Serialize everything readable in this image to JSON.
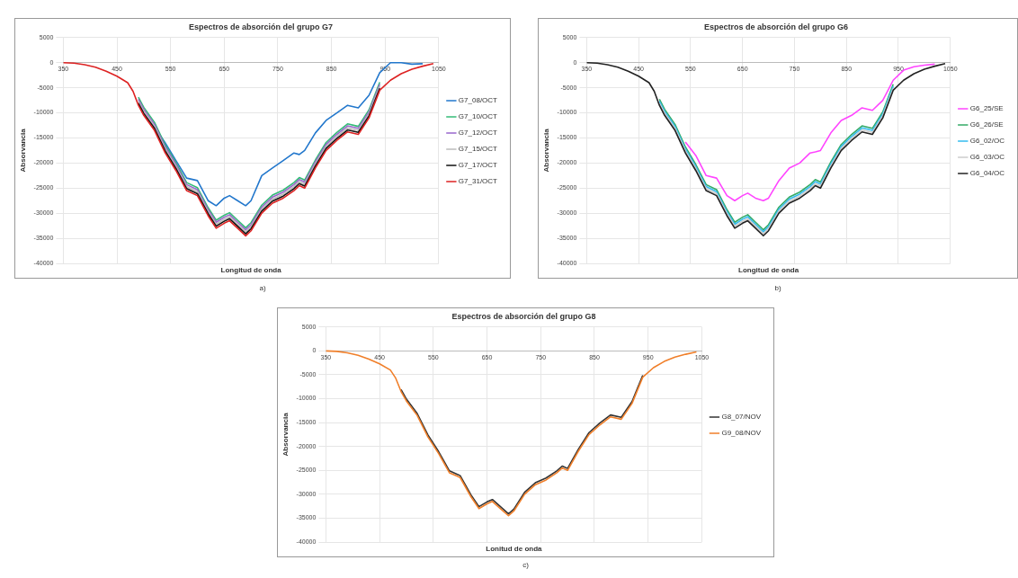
{
  "chart_data": [
    {
      "type": "line",
      "title": "Espectros de absorción del grupo G7",
      "xlabel": "Longitud de onda",
      "ylabel": "Absorvancia",
      "annotations": [
        "a)"
      ],
      "xlim": [
        350,
        1050
      ],
      "xticks": [
        350,
        450,
        550,
        650,
        750,
        850,
        950,
        1050
      ],
      "ylim": [
        -40000,
        5000
      ],
      "yticks": [
        -40000,
        -35000,
        -30000,
        -25000,
        -20000,
        -15000,
        -10000,
        -5000,
        0,
        5000
      ],
      "grid": true,
      "legend": "right",
      "marker": "none",
      "line_style": "solid",
      "x": [
        350,
        370,
        390,
        410,
        430,
        450,
        470,
        480,
        490,
        500,
        520,
        540,
        560,
        580,
        600,
        620,
        635,
        650,
        660,
        675,
        690,
        700,
        720,
        740,
        760,
        780,
        790,
        800,
        820,
        840,
        860,
        880,
        900,
        920,
        940,
        960,
        980,
        1000,
        1020,
        1040
      ],
      "series": [
        {
          "name": "G7_08/OCT",
          "color": "#2277cc",
          "values": [
            null,
            null,
            null,
            null,
            null,
            null,
            null,
            null,
            null,
            null,
            -12800,
            -16000,
            -19500,
            -23000,
            -23500,
            -27500,
            -28500,
            -27000,
            -26500,
            -27500,
            -28500,
            -27500,
            -22500,
            -21000,
            -19500,
            -18000,
            -18300,
            -17500,
            -14000,
            -11500,
            -10000,
            -8500,
            -9000,
            -6500,
            -2000,
            0,
            0,
            -300,
            -200,
            null
          ]
        },
        {
          "name": "G7_10/OCT",
          "color": "#33bb77",
          "values": [
            null,
            null,
            null,
            null,
            null,
            null,
            null,
            null,
            -6900,
            -8900,
            -11900,
            -16400,
            -19900,
            -23900,
            -24900,
            -28900,
            -31400,
            -30400,
            -29900,
            -31400,
            -32900,
            -31900,
            -28400,
            -26400,
            -25400,
            -23900,
            -22900,
            -23400,
            -19400,
            -15900,
            -13900,
            -12200,
            -12700,
            -9400,
            -3900,
            null,
            null,
            null,
            null,
            null
          ]
        },
        {
          "name": "G7_12/OCT",
          "color": "#9966cc",
          "values": [
            null,
            null,
            null,
            null,
            null,
            null,
            null,
            null,
            -7300,
            -9300,
            -12300,
            -16800,
            -20300,
            -24300,
            -25300,
            -29300,
            -31800,
            -30800,
            -30300,
            -31800,
            -33300,
            -32300,
            -28800,
            -26800,
            -25800,
            -24300,
            -23300,
            -23800,
            -19800,
            -16300,
            -14300,
            -12600,
            -13100,
            -9800,
            -4300,
            null,
            null,
            null,
            null,
            null
          ]
        },
        {
          "name": "G7_15/OCT",
          "color": "#bbbbbb",
          "values": [
            null,
            null,
            null,
            null,
            null,
            null,
            null,
            null,
            -7700,
            -9700,
            -12700,
            -17200,
            -20700,
            -24700,
            -25700,
            -29700,
            -32200,
            -31200,
            -30700,
            -32200,
            -33700,
            -32700,
            -29200,
            -27200,
            -26200,
            -24700,
            -23700,
            -24200,
            -20200,
            -16700,
            -14700,
            -13000,
            -13500,
            -10200,
            -4700,
            null,
            null,
            null,
            null,
            null
          ]
        },
        {
          "name": "G7_17/OCT",
          "color": "#111111",
          "values": [
            null,
            null,
            null,
            null,
            null,
            null,
            null,
            null,
            -8100,
            -10100,
            -13100,
            -17600,
            -21100,
            -25100,
            -26100,
            -30100,
            -32600,
            -31600,
            -31100,
            -32600,
            -34100,
            -33100,
            -29600,
            -27600,
            -26600,
            -25100,
            -24100,
            -24600,
            -20600,
            -17100,
            -15100,
            -13400,
            -13900,
            -10600,
            -5100,
            null,
            null,
            null,
            null,
            null
          ]
        },
        {
          "name": "G7_31/OCT",
          "color": "#dd2222",
          "values": [
            0,
            -100,
            -400,
            -900,
            -1700,
            -2700,
            -4000,
            -5700,
            -8500,
            -10500,
            -13500,
            -18000,
            -21500,
            -25500,
            -26500,
            -30500,
            -33000,
            -32000,
            -31500,
            -33000,
            -34500,
            -33500,
            -30000,
            -28000,
            -27000,
            -25500,
            -24500,
            -25000,
            -21000,
            -17500,
            -15500,
            -13800,
            -14300,
            -11000,
            -5500,
            -3500,
            -2200,
            -1300,
            -700,
            -200
          ]
        }
      ]
    },
    {
      "type": "line",
      "title": "Espectros de absorción del grupo G6",
      "xlabel": "Longitud de onda",
      "ylabel": "Absorvancia",
      "annotations": [
        "b)"
      ],
      "xlim": [
        350,
        1050
      ],
      "xticks": [
        350,
        450,
        550,
        650,
        750,
        850,
        950,
        1050
      ],
      "ylim": [
        -40000,
        5000
      ],
      "yticks": [
        -40000,
        -35000,
        -30000,
        -25000,
        -20000,
        -15000,
        -10000,
        -5000,
        0,
        5000
      ],
      "grid": true,
      "legend": "right",
      "marker": "none",
      "line_style": "solid",
      "x": [
        350,
        370,
        390,
        410,
        430,
        450,
        470,
        480,
        490,
        500,
        520,
        540,
        560,
        580,
        600,
        620,
        635,
        650,
        660,
        675,
        690,
        700,
        720,
        740,
        760,
        780,
        790,
        800,
        820,
        840,
        860,
        880,
        900,
        920,
        940,
        960,
        980,
        1000,
        1020,
        1040
      ],
      "series": [
        {
          "name": "G6_25/SE",
          "color": "#ff44ff",
          "values": [
            null,
            null,
            null,
            null,
            null,
            null,
            null,
            null,
            null,
            null,
            null,
            -15800,
            -18500,
            -22500,
            -23000,
            -26500,
            -27500,
            -26500,
            -26000,
            -27000,
            -27500,
            -27000,
            -23500,
            -21000,
            -20000,
            -18000,
            -17800,
            -17500,
            -14000,
            -11500,
            -10500,
            -9000,
            -9500,
            -7500,
            -3500,
            -1500,
            -800,
            -500,
            -300,
            null
          ]
        },
        {
          "name": "G6_26/SE",
          "color": "#33aa66",
          "values": [
            null,
            null,
            null,
            null,
            null,
            null,
            null,
            null,
            -7300,
            -9300,
            -12300,
            -16800,
            -20300,
            -24300,
            -25300,
            -29300,
            -31800,
            -30800,
            -30300,
            -31800,
            -33300,
            -32300,
            -28800,
            -26800,
            -25800,
            -24300,
            -23300,
            -23800,
            -19800,
            -16300,
            -14300,
            -12600,
            -13100,
            -9800,
            -4300,
            null,
            null,
            null,
            null,
            null
          ]
        },
        {
          "name": "G6_02/OC",
          "color": "#33bbee",
          "values": [
            null,
            null,
            null,
            null,
            null,
            null,
            null,
            null,
            -7700,
            -9700,
            -12700,
            -17200,
            -20700,
            -24700,
            -25700,
            -29700,
            -32200,
            -31200,
            -30700,
            -32200,
            -33700,
            -32700,
            -29200,
            -27200,
            -26200,
            -24700,
            -23700,
            -24200,
            -20200,
            -16700,
            -14700,
            -13000,
            -13500,
            -10200,
            -4700,
            null,
            null,
            null,
            null,
            null
          ]
        },
        {
          "name": "G6_03/OC",
          "color": "#cccccc",
          "values": [
            null,
            null,
            null,
            null,
            null,
            null,
            null,
            null,
            -8100,
            -10100,
            -13100,
            -17600,
            -21100,
            -25100,
            -26100,
            -30100,
            -32600,
            -31600,
            -31100,
            -32600,
            -34100,
            -33100,
            -29600,
            -27600,
            -26600,
            -25100,
            -24100,
            -24600,
            -20600,
            -17100,
            -15100,
            -13400,
            -13900,
            -10600,
            -5100,
            null,
            null,
            null,
            null,
            null
          ]
        },
        {
          "name": "G6_04/OC",
          "color": "#222222",
          "values": [
            0,
            -100,
            -400,
            -900,
            -1700,
            -2700,
            -4000,
            -5700,
            -8500,
            -10500,
            -13500,
            -18000,
            -21500,
            -25500,
            -26500,
            -30500,
            -33000,
            -32000,
            -31500,
            -33000,
            -34500,
            -33500,
            -30000,
            -28000,
            -27000,
            -25500,
            -24500,
            -25000,
            -21000,
            -17500,
            -15500,
            -13800,
            -14300,
            -11000,
            -5500,
            -3500,
            -2200,
            -1300,
            -700,
            -200
          ]
        }
      ]
    },
    {
      "type": "line",
      "title": "Espectros de absorción del grupo G8",
      "xlabel": "Lonitud de onda",
      "ylabel": "Absorvancia",
      "annotations": [
        "c)"
      ],
      "xlim": [
        350,
        1050
      ],
      "xticks": [
        350,
        450,
        550,
        650,
        750,
        850,
        950,
        1050
      ],
      "ylim": [
        -40000,
        5000
      ],
      "yticks": [
        -40000,
        -35000,
        -30000,
        -25000,
        -20000,
        -15000,
        -10000,
        -5000,
        0,
        5000
      ],
      "grid": true,
      "legend": "right",
      "marker": "none",
      "line_style": "solid",
      "x": [
        350,
        370,
        390,
        410,
        430,
        450,
        470,
        480,
        490,
        500,
        520,
        540,
        560,
        580,
        600,
        620,
        635,
        650,
        660,
        675,
        690,
        700,
        720,
        740,
        760,
        780,
        790,
        800,
        820,
        840,
        860,
        880,
        900,
        920,
        940,
        960,
        980,
        1000,
        1020,
        1040
      ],
      "series": [
        {
          "name": "G8_07/NOV",
          "color": "#333333",
          "values": [
            null,
            null,
            null,
            null,
            null,
            null,
            null,
            null,
            -8100,
            -10100,
            -13100,
            -17600,
            -21100,
            -25100,
            -26100,
            -30100,
            -32600,
            -31600,
            -31100,
            -32600,
            -34100,
            -33100,
            -29600,
            -27600,
            -26600,
            -25100,
            -24100,
            -24600,
            -20600,
            -17100,
            -15100,
            -13400,
            -13900,
            -10600,
            -5100,
            null,
            null,
            null,
            null,
            null
          ]
        },
        {
          "name": "G9_08/NOV",
          "color": "#f07f2a",
          "values": [
            0,
            -100,
            -400,
            -900,
            -1700,
            -2700,
            -4000,
            -5700,
            -8500,
            -10500,
            -13500,
            -18000,
            -21500,
            -25500,
            -26500,
            -30500,
            -33000,
            -32000,
            -31500,
            -33000,
            -34500,
            -33500,
            -30000,
            -28000,
            -27000,
            -25500,
            -24500,
            -25000,
            -21000,
            -17500,
            -15500,
            -13800,
            -14300,
            -11000,
            -5500,
            -3500,
            -2200,
            -1300,
            -700,
            -200
          ]
        }
      ]
    }
  ]
}
